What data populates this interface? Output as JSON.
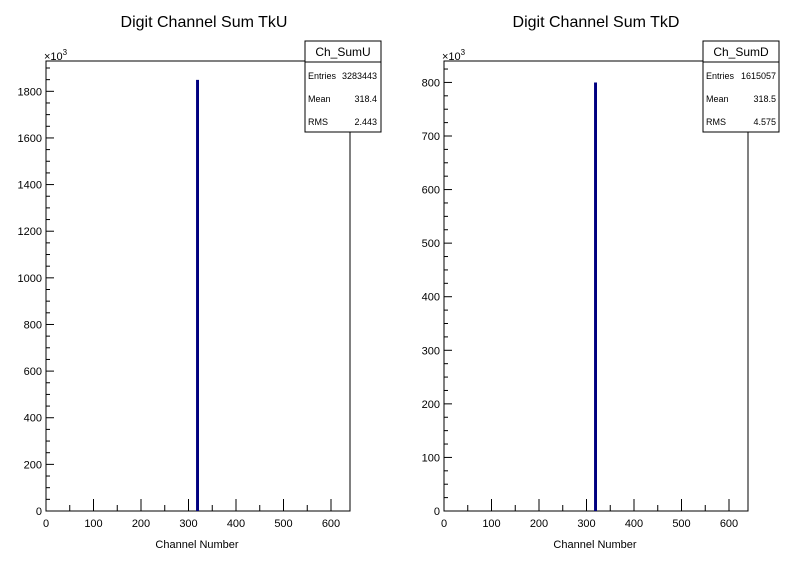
{
  "chart_data": [
    {
      "type": "bar",
      "title": "Digit Channel Sum TkU",
      "xlabel": "Channel Number",
      "ylabel": "",
      "y_multiplier": "×10",
      "y_multiplier_exp": "3",
      "xlim": [
        0,
        640
      ],
      "ylim": [
        0,
        1930
      ],
      "xticks": [
        0,
        100,
        200,
        300,
        400,
        500,
        600
      ],
      "xtick_labels": [
        "0",
        "100",
        "200",
        "300",
        "400",
        "500",
        "600"
      ],
      "yticks": [
        0,
        200,
        400,
        600,
        800,
        1000,
        1200,
        1400,
        1600,
        1800
      ],
      "ytick_labels": [
        "0",
        "200",
        "400",
        "600",
        "800",
        "1000",
        "1200",
        "1400",
        "1600",
        "1800"
      ],
      "bins": [
        {
          "x": 318,
          "width": 2,
          "value": 1845
        }
      ],
      "stats": {
        "name": "Ch_SumU",
        "rows": [
          {
            "label": "Entries",
            "value": "3283443"
          },
          {
            "label": "Mean",
            "value": "318.4"
          },
          {
            "label": "RMS",
            "value": "2.443"
          }
        ]
      },
      "colors": {
        "bar": "#000080"
      },
      "grid": false
    },
    {
      "type": "bar",
      "title": "Digit Channel Sum TkD",
      "xlabel": "Channel Number",
      "ylabel": "",
      "y_multiplier": "×10",
      "y_multiplier_exp": "3",
      "xlim": [
        0,
        640
      ],
      "ylim": [
        0,
        840
      ],
      "xticks": [
        0,
        100,
        200,
        300,
        400,
        500,
        600
      ],
      "xtick_labels": [
        "0",
        "100",
        "200",
        "300",
        "400",
        "500",
        "600"
      ],
      "yticks": [
        0,
        100,
        200,
        300,
        400,
        500,
        600,
        700,
        800
      ],
      "ytick_labels": [
        "0",
        "100",
        "200",
        "300",
        "400",
        "500",
        "600",
        "700",
        "800"
      ],
      "bins": [
        {
          "x": 318,
          "width": 2,
          "value": 798
        }
      ],
      "stats": {
        "name": "Ch_SumD",
        "rows": [
          {
            "label": "Entries",
            "value": "1615057"
          },
          {
            "label": "Mean",
            "value": "318.5"
          },
          {
            "label": "RMS",
            "value": "4.575"
          }
        ]
      },
      "colors": {
        "bar": "#000080"
      },
      "grid": false
    }
  ]
}
